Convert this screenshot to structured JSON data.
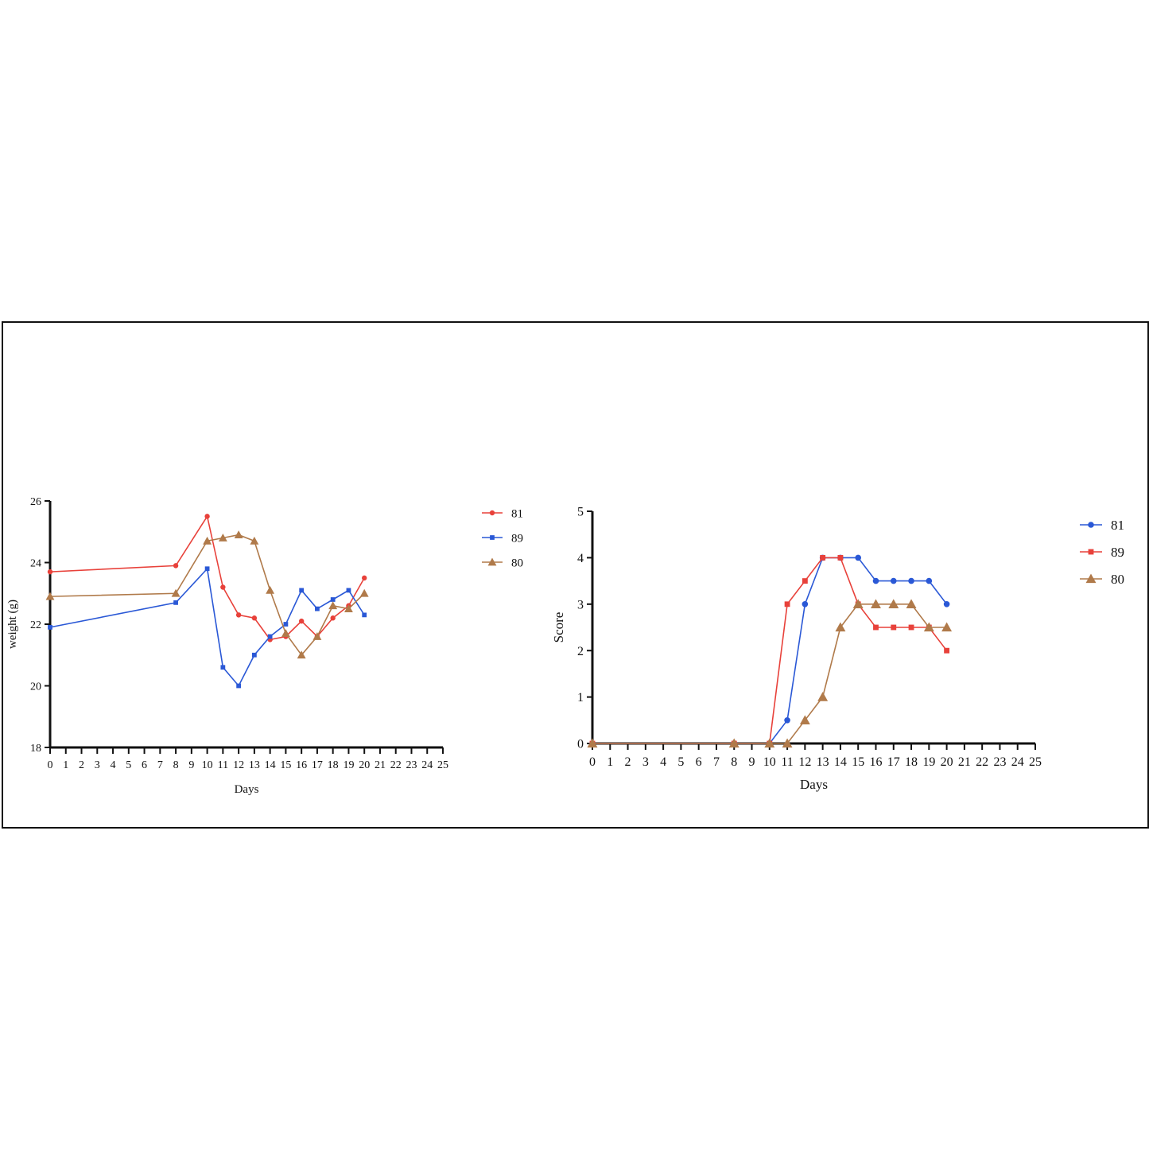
{
  "chart_data": [
    {
      "type": "line",
      "title": "",
      "xlabel": "Days",
      "ylabel": "weight (g)",
      "xlim": [
        0,
        25
      ],
      "ylim": [
        18,
        26
      ],
      "x_ticks": [
        "0",
        "1",
        "2",
        "3",
        "4",
        "5",
        "6",
        "7",
        "8",
        "9",
        "10",
        "11",
        "12",
        "13",
        "14",
        "15",
        "16",
        "17",
        "18",
        "19",
        "20",
        "21",
        "22",
        "23",
        "24",
        "25"
      ],
      "y_ticks": [
        "18",
        "20",
        "22",
        "24",
        "26"
      ],
      "legend_position": "right",
      "series": [
        {
          "name": "81",
          "color": "#e8413a",
          "marker": "circle",
          "x": [
            0,
            8,
            10,
            11,
            12,
            13,
            14,
            15,
            16,
            17,
            18,
            19,
            20
          ],
          "y": [
            23.7,
            23.9,
            25.5,
            23.2,
            22.3,
            22.2,
            21.5,
            21.6,
            22.1,
            21.6,
            22.2,
            22.6,
            23.5
          ]
        },
        {
          "name": "89",
          "color": "#2a58d6",
          "marker": "square",
          "x": [
            0,
            8,
            10,
            11,
            12,
            13,
            14,
            15,
            16,
            17,
            18,
            19,
            20
          ],
          "y": [
            21.9,
            22.7,
            23.8,
            20.6,
            20.0,
            21.0,
            21.6,
            22.0,
            23.1,
            22.5,
            22.8,
            23.1,
            22.3
          ]
        },
        {
          "name": "80",
          "color": "#b07a4a",
          "marker": "triangle",
          "x": [
            0,
            8,
            10,
            11,
            12,
            13,
            14,
            15,
            16,
            17,
            18,
            19,
            20
          ],
          "y": [
            22.9,
            23.0,
            24.7,
            24.8,
            24.9,
            24.7,
            23.1,
            21.7,
            21.0,
            21.6,
            22.6,
            22.5,
            23.0
          ]
        }
      ]
    },
    {
      "type": "line",
      "title": "",
      "xlabel": "Days",
      "ylabel": "Score",
      "xlim": [
        0,
        25
      ],
      "ylim": [
        0,
        5
      ],
      "x_ticks": [
        "0",
        "1",
        "2",
        "3",
        "4",
        "5",
        "6",
        "7",
        "8",
        "9",
        "10",
        "11",
        "12",
        "13",
        "14",
        "15",
        "16",
        "17",
        "18",
        "19",
        "20",
        "21",
        "22",
        "23",
        "24",
        "25"
      ],
      "y_ticks": [
        "0",
        "1",
        "2",
        "3",
        "4",
        "5"
      ],
      "legend_position": "right",
      "series": [
        {
          "name": "81",
          "color": "#2a58d6",
          "marker": "circle",
          "x": [
            0,
            8,
            10,
            11,
            12,
            13,
            14,
            15,
            16,
            17,
            18,
            19,
            20
          ],
          "y": [
            0,
            0,
            0,
            0.5,
            3,
            4,
            4,
            4,
            3.5,
            3.5,
            3.5,
            3.5,
            3
          ]
        },
        {
          "name": "89",
          "color": "#e8413a",
          "marker": "square",
          "x": [
            0,
            8,
            10,
            11,
            12,
            13,
            14,
            15,
            16,
            17,
            18,
            19,
            20
          ],
          "y": [
            0,
            0,
            0,
            3,
            3.5,
            4,
            4,
            3,
            2.5,
            2.5,
            2.5,
            2.5,
            2
          ]
        },
        {
          "name": "80",
          "color": "#b07a4a",
          "marker": "triangle",
          "x": [
            0,
            8,
            10,
            11,
            12,
            13,
            14,
            15,
            16,
            17,
            18,
            19,
            20
          ],
          "y": [
            0,
            0,
            0,
            0,
            0.5,
            1,
            2.5,
            3,
            3,
            3,
            3,
            2.5,
            2.5
          ]
        }
      ]
    }
  ]
}
